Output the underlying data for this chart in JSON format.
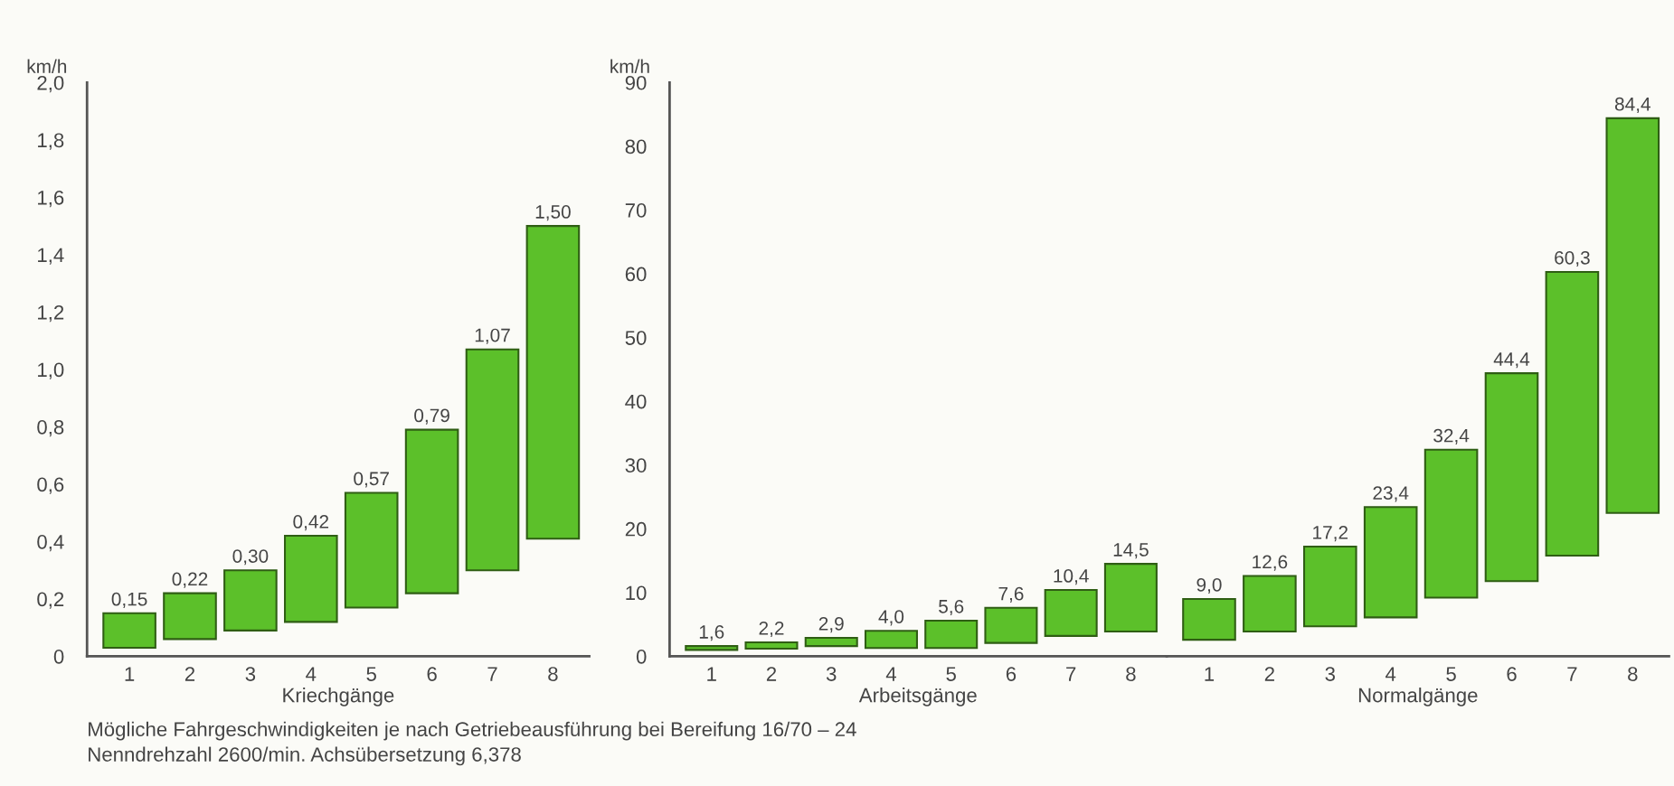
{
  "chart_data": [
    {
      "type": "bar",
      "xlabel": "Kriechgänge",
      "ylabel": "km/h",
      "categories": [
        "1",
        "2",
        "3",
        "4",
        "5",
        "6",
        "7",
        "8"
      ],
      "values": [
        0.12,
        0.16,
        0.21,
        0.3,
        0.4,
        0.57,
        0.77,
        1.09
      ],
      "base": [
        0.03,
        0.06,
        0.09,
        0.12,
        0.17,
        0.22,
        0.3,
        0.41
      ],
      "value_labels": [
        "0,15",
        "0,22",
        "0,30",
        "0,42",
        "0,57",
        "0,79",
        "1,07",
        "1,50"
      ],
      "color": "#5cc02a",
      "ylim": [
        0,
        2.0
      ],
      "yticks": [
        0,
        {
          "value": 0.2,
          "label": "0,2"
        },
        {
          "value": 0.4,
          "label": "0,4"
        },
        {
          "value": 0.6,
          "label": "0,6"
        },
        {
          "value": 0.8,
          "label": "0,8"
        },
        {
          "value": 1.0,
          "label": "1,0"
        },
        {
          "value": 1.2,
          "label": "1,2"
        },
        {
          "value": 1.4,
          "label": "1,4"
        },
        {
          "value": 1.6,
          "label": "1,6"
        },
        {
          "value": 1.8,
          "label": "1,8"
        },
        {
          "value": 2.0,
          "label": "2,0"
        }
      ],
      "annotations": [
        "Mögliche Fahrgeschwindigkeiten je nach Getriebeausführung bei Bereifung 16/70 – 24",
        "Nenndrehzahl 2600/min. Achsübersetzung 6,378"
      ]
    },
    {
      "type": "bar",
      "xlabel": "Arbeitsgänge",
      "ylabel": "km/h",
      "categories": [
        "1",
        "2",
        "3",
        "4",
        "5",
        "6",
        "7",
        "8"
      ],
      "values": [
        0.6,
        1.0,
        1.3,
        2.7,
        4.3,
        5.5,
        7.2,
        10.6
      ],
      "base": [
        1.0,
        1.2,
        1.6,
        1.3,
        1.3,
        2.1,
        3.2,
        3.9
      ],
      "value_labels": [
        "1,6",
        "2,2",
        "2,9",
        "4,0",
        "5,6",
        "7,6",
        "10,4",
        "14,5"
      ],
      "color": "#5cc02a",
      "ylim": [
        0,
        90
      ],
      "yticks": [
        0,
        10,
        20,
        30,
        40,
        50,
        60,
        70,
        80,
        90
      ]
    },
    {
      "type": "bar",
      "xlabel": "Normalgänge",
      "categories": [
        "1",
        "2",
        "3",
        "4",
        "5",
        "6",
        "7",
        "8"
      ],
      "values": [
        6.4,
        8.7,
        12.5,
        17.3,
        23.2,
        32.6,
        44.5,
        61.9
      ],
      "base": [
        2.6,
        3.9,
        4.7,
        6.1,
        9.2,
        11.8,
        15.8,
        22.5
      ],
      "value_labels": [
        "9,0",
        "12,6",
        "17,2",
        "23,4",
        "32,4",
        "44,4",
        "60,3",
        "84,4"
      ],
      "color": "#5cc02a",
      "ylim": [
        0,
        90
      ],
      "tick_labels": "x"
    }
  ]
}
